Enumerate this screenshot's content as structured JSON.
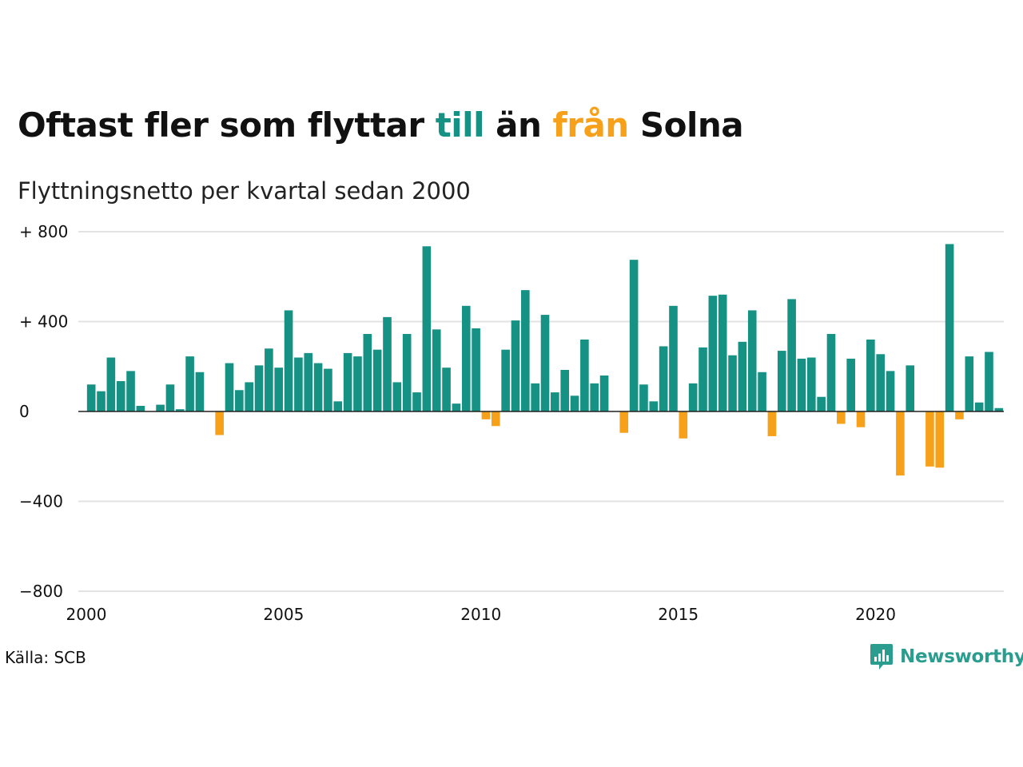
{
  "title": {
    "part1": "Oftast fler som flyttar ",
    "word_till": "till",
    "part2": " än ",
    "word_fran": "från",
    "part3": " Solna"
  },
  "subtitle": "Flyttningsnetto per kvartal sedan 2000",
  "source": "Källa: SCB",
  "brand": "Newsworthy",
  "colors": {
    "positive": "#169284",
    "negative": "#f7a11a",
    "grid": "#e3e3e3",
    "zero": "#222222"
  },
  "chart_data": {
    "type": "bar",
    "title": "Oftast fler som flyttar till än från Solna",
    "subtitle": "Flyttningsnetto per kvartal sedan 2000",
    "xlabel": "",
    "ylabel": "",
    "ylim": [
      -800,
      800
    ],
    "yticks": [
      {
        "value": 800,
        "label": "+ 800"
      },
      {
        "value": 400,
        "label": "+ 400"
      },
      {
        "value": 0,
        "label": "0"
      },
      {
        "value": -400,
        "label": "−400"
      },
      {
        "value": -800,
        "label": "−800"
      }
    ],
    "xticks": [
      {
        "value": 2000,
        "label": "2000"
      },
      {
        "value": 2005,
        "label": "2005"
      },
      {
        "value": 2010,
        "label": "2010"
      },
      {
        "value": 2015,
        "label": "2015"
      },
      {
        "value": 2020,
        "label": "2020"
      }
    ],
    "x_start": 2000,
    "grid": true,
    "legend": "none",
    "series": [
      {
        "values": [
          120,
          90,
          240,
          135,
          180,
          25,
          0,
          30,
          120,
          10,
          245,
          175,
          -1,
          -105,
          215,
          95,
          130,
          205,
          280,
          195,
          450,
          240,
          260,
          215,
          190,
          45,
          260,
          245,
          345,
          275,
          420,
          130,
          345,
          85,
          735,
          365,
          195,
          35,
          470,
          370,
          -35,
          -65,
          275,
          405,
          540,
          125,
          430,
          85,
          185,
          70,
          320,
          125,
          160,
          0,
          -95,
          675,
          120,
          45,
          290,
          470,
          -120,
          125,
          285,
          515,
          520,
          250,
          310,
          450,
          175,
          -110,
          270,
          500,
          235,
          240,
          65,
          345,
          -55,
          235,
          -70,
          320,
          255,
          180,
          -285,
          205,
          0,
          -245,
          -250,
          745,
          -35,
          245,
          40,
          265,
          15
        ]
      }
    ]
  }
}
